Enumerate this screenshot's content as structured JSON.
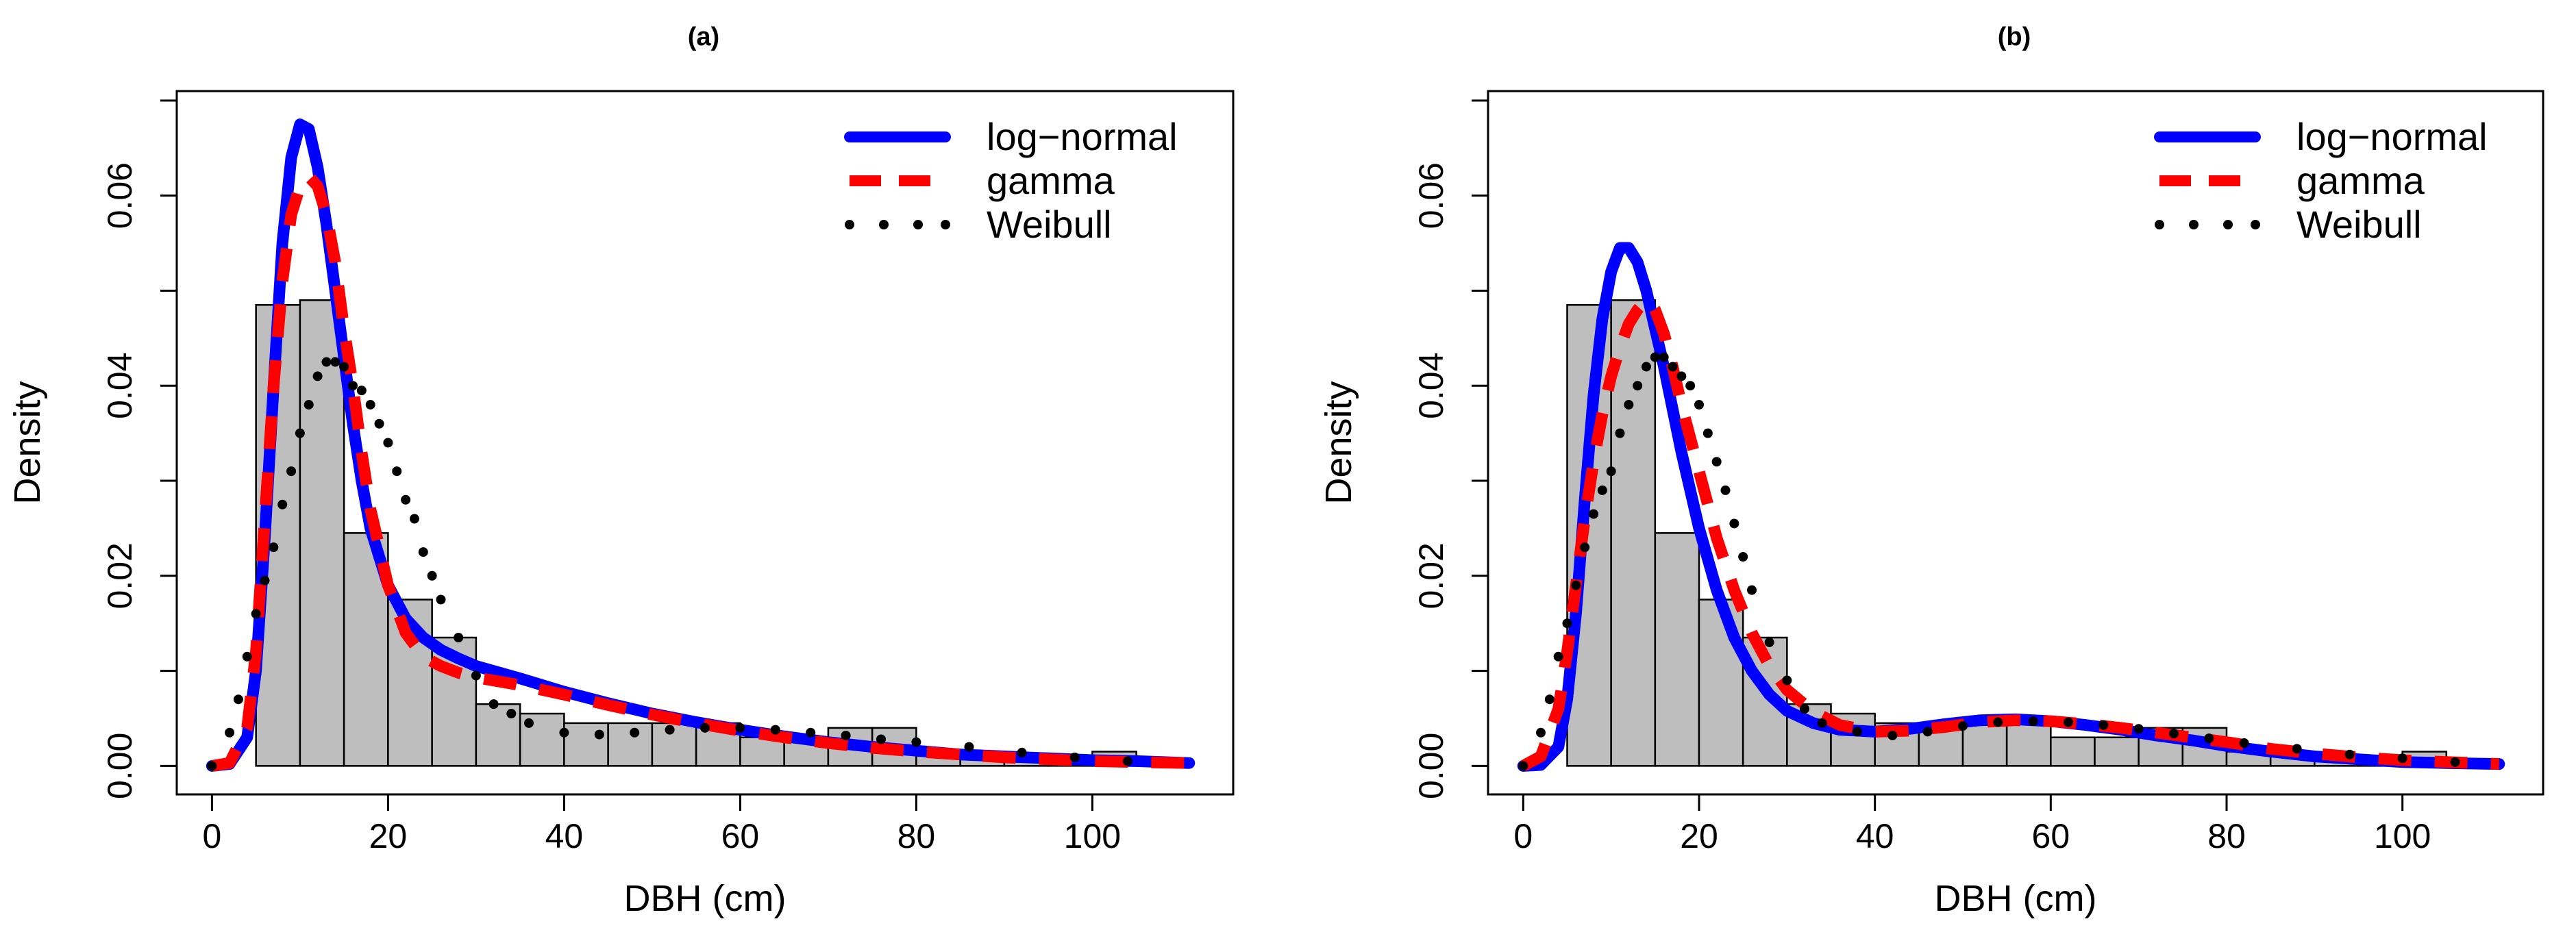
{
  "chart_data": [
    {
      "panel": "a",
      "type": "histogram",
      "title": "(a)",
      "xlabel": "DBH (cm)",
      "ylabel": "Density",
      "xlim": [
        -4,
        116
      ],
      "ylim": [
        -0.003,
        0.071
      ],
      "xticks": [
        0,
        20,
        40,
        60,
        80,
        100
      ],
      "yticks": [
        0.0,
        0.02,
        0.04,
        0.06
      ],
      "ytick_labels": [
        "0.00",
        "0.02",
        "0.04",
        "0.06"
      ],
      "bins": [
        5,
        10,
        15,
        20,
        25,
        30,
        35,
        40,
        45,
        50,
        55,
        60,
        65,
        70,
        75,
        80,
        85,
        90,
        95,
        100,
        105,
        110
      ],
      "densities": [
        0.0485,
        0.049,
        0.0245,
        0.0175,
        0.0135,
        0.0065,
        0.0055,
        0.0045,
        0.0045,
        0.0045,
        0.0045,
        0.003,
        0.003,
        0.004,
        0.004,
        0.0015,
        0.0015,
        0.001,
        0.001,
        0.0015,
        0.0005
      ],
      "legend": [
        {
          "label": "log−normal",
          "color": "#0000ff",
          "style": "solid"
        },
        {
          "label": "gamma",
          "color": "#ff0000",
          "style": "dashed"
        },
        {
          "label": "Weibull",
          "color": "#000000",
          "style": "dotted"
        }
      ],
      "series": [
        {
          "name": "log-normal",
          "color": "#0000ff",
          "x": [
            0,
            2,
            4,
            5,
            6,
            7,
            8,
            9,
            10,
            11,
            12,
            13,
            14,
            15,
            16,
            17,
            18,
            20,
            22,
            24,
            26,
            28,
            30,
            35,
            40,
            45,
            50,
            55,
            60,
            65,
            70,
            75,
            80,
            85,
            90,
            95,
            100,
            105,
            111
          ],
          "y": [
            0,
            0.0002,
            0.003,
            0.01,
            0.024,
            0.04,
            0.055,
            0.064,
            0.0675,
            0.067,
            0.063,
            0.057,
            0.05,
            0.043,
            0.036,
            0.03,
            0.025,
            0.019,
            0.0155,
            0.0135,
            0.0122,
            0.0113,
            0.0105,
            0.0092,
            0.0078,
            0.0066,
            0.0055,
            0.0046,
            0.0038,
            0.0031,
            0.0025,
            0.002,
            0.0016,
            0.0012,
            0.001,
            0.0008,
            0.0006,
            0.0005,
            0.0003
          ]
        },
        {
          "name": "gamma",
          "color": "#ff0000",
          "x": [
            0,
            2,
            4,
            5,
            6,
            7,
            8,
            9,
            10,
            11,
            12,
            13,
            14,
            15,
            16,
            17,
            18,
            20,
            22,
            24,
            26,
            28,
            30,
            35,
            40,
            45,
            50,
            55,
            60,
            65,
            70,
            75,
            80,
            85,
            90,
            95,
            100,
            105,
            111
          ],
          "y": [
            0,
            0.0003,
            0.004,
            0.012,
            0.026,
            0.04,
            0.051,
            0.058,
            0.061,
            0.062,
            0.061,
            0.058,
            0.053,
            0.046,
            0.04,
            0.033,
            0.027,
            0.019,
            0.014,
            0.0115,
            0.0105,
            0.0098,
            0.0093,
            0.0085,
            0.0075,
            0.0064,
            0.0054,
            0.0045,
            0.0037,
            0.003,
            0.0024,
            0.0019,
            0.0015,
            0.0012,
            0.0009,
            0.0007,
            0.0005,
            0.0004,
            0.0003
          ]
        },
        {
          "name": "Weibull",
          "color": "#000000",
          "style": "points",
          "x": [
            0,
            2,
            3,
            4,
            5,
            6,
            7,
            8,
            9,
            10,
            11,
            12,
            13,
            14,
            15,
            16,
            17,
            18,
            19,
            20,
            21,
            22,
            23,
            24,
            25,
            26,
            28,
            30,
            32,
            34,
            36,
            40,
            44,
            48,
            52,
            56,
            60,
            64,
            68,
            72,
            76,
            80,
            86,
            92,
            98,
            104
          ],
          "y": [
            0,
            0.0035,
            0.007,
            0.0115,
            0.016,
            0.0195,
            0.023,
            0.0275,
            0.031,
            0.035,
            0.038,
            0.041,
            0.0425,
            0.0425,
            0.042,
            0.04,
            0.0395,
            0.038,
            0.036,
            0.034,
            0.031,
            0.028,
            0.026,
            0.0225,
            0.02,
            0.0175,
            0.0135,
            0.0095,
            0.0065,
            0.0055,
            0.0045,
            0.0035,
            0.0033,
            0.0035,
            0.0038,
            0.004,
            0.004,
            0.0038,
            0.0035,
            0.0032,
            0.0028,
            0.0025,
            0.002,
            0.0014,
            0.0009,
            0.0005
          ]
        }
      ]
    },
    {
      "panel": "b",
      "type": "histogram",
      "title": "(b)",
      "xlabel": "DBH (cm)",
      "ylabel": "Density",
      "xlim": [
        -4,
        116
      ],
      "ylim": [
        -0.003,
        0.071
      ],
      "xticks": [
        0,
        20,
        40,
        60,
        80,
        100
      ],
      "yticks": [
        0.0,
        0.02,
        0.04,
        0.06
      ],
      "ytick_labels": [
        "0.00",
        "0.02",
        "0.04",
        "0.06"
      ],
      "bins": [
        5,
        10,
        15,
        20,
        25,
        30,
        35,
        40,
        45,
        50,
        55,
        60,
        65,
        70,
        75,
        80,
        85,
        90,
        95,
        100,
        105,
        110
      ],
      "densities": [
        0.0485,
        0.049,
        0.0245,
        0.0175,
        0.0135,
        0.0065,
        0.0055,
        0.0045,
        0.0045,
        0.0045,
        0.0045,
        0.003,
        0.003,
        0.004,
        0.004,
        0.0015,
        0.0015,
        0.001,
        0.001,
        0.0015,
        0.0005
      ],
      "legend": [
        {
          "label": "log−normal",
          "color": "#0000ff",
          "style": "solid"
        },
        {
          "label": "gamma",
          "color": "#ff0000",
          "style": "dashed"
        },
        {
          "label": "Weibull",
          "color": "#000000",
          "style": "dotted"
        }
      ],
      "series": [
        {
          "name": "log-normal",
          "color": "#0000ff",
          "x": [
            0,
            2,
            4,
            5,
            6,
            7,
            8,
            9,
            10,
            11,
            12,
            13,
            14,
            15,
            16,
            17,
            18,
            20,
            22,
            24,
            26,
            28,
            30,
            33,
            36,
            40,
            44,
            48,
            52,
            56,
            60,
            64,
            68,
            72,
            76,
            80,
            85,
            90,
            95,
            100,
            105,
            111
          ],
          "y": [
            0,
            0.0001,
            0.002,
            0.007,
            0.016,
            0.028,
            0.039,
            0.047,
            0.052,
            0.0545,
            0.0545,
            0.053,
            0.05,
            0.046,
            0.042,
            0.0375,
            0.033,
            0.025,
            0.0185,
            0.0135,
            0.01,
            0.0075,
            0.0058,
            0.0045,
            0.0038,
            0.0036,
            0.0039,
            0.0044,
            0.0048,
            0.0049,
            0.0047,
            0.0043,
            0.0038,
            0.0032,
            0.0027,
            0.0021,
            0.0015,
            0.001,
            0.0007,
            0.0004,
            0.0003,
            0.0002
          ]
        },
        {
          "name": "gamma",
          "color": "#ff0000",
          "x": [
            0,
            2,
            4,
            5,
            6,
            7,
            8,
            9,
            10,
            11,
            12,
            13,
            14,
            15,
            16,
            17,
            18,
            20,
            22,
            24,
            26,
            28,
            30,
            33,
            36,
            40,
            44,
            48,
            52,
            56,
            60,
            64,
            68,
            72,
            76,
            80,
            85,
            90,
            95,
            100,
            105,
            111
          ],
          "y": [
            0,
            0.001,
            0.006,
            0.012,
            0.019,
            0.026,
            0.032,
            0.037,
            0.041,
            0.044,
            0.0465,
            0.048,
            0.049,
            0.048,
            0.0455,
            0.042,
            0.038,
            0.031,
            0.024,
            0.0185,
            0.014,
            0.0105,
            0.008,
            0.0057,
            0.0043,
            0.0036,
            0.0037,
            0.0041,
            0.0046,
            0.0048,
            0.0047,
            0.0044,
            0.004,
            0.0035,
            0.003,
            0.0025,
            0.0018,
            0.0013,
            0.0009,
            0.0006,
            0.0004,
            0.0002
          ]
        },
        {
          "name": "Weibull",
          "color": "#000000",
          "style": "points",
          "x": [
            0,
            2,
            3,
            4,
            5,
            6,
            7,
            8,
            9,
            10,
            11,
            12,
            13,
            14,
            15,
            16,
            17,
            18,
            19,
            20,
            21,
            22,
            23,
            24,
            25,
            26,
            28,
            30,
            32,
            34,
            38,
            42,
            46,
            50,
            54,
            58,
            62,
            66,
            70,
            74,
            78,
            82,
            88,
            94,
            100,
            106
          ],
          "y": [
            0,
            0.0035,
            0.007,
            0.0115,
            0.015,
            0.019,
            0.023,
            0.0265,
            0.029,
            0.031,
            0.035,
            0.038,
            0.04,
            0.042,
            0.043,
            0.043,
            0.042,
            0.041,
            0.04,
            0.038,
            0.035,
            0.032,
            0.029,
            0.0255,
            0.022,
            0.0185,
            0.013,
            0.009,
            0.006,
            0.0045,
            0.0036,
            0.0032,
            0.0036,
            0.0042,
            0.0046,
            0.0047,
            0.0046,
            0.0043,
            0.0039,
            0.0034,
            0.0029,
            0.0024,
            0.0018,
            0.0012,
            0.0008,
            0.0004
          ]
        }
      ]
    }
  ]
}
